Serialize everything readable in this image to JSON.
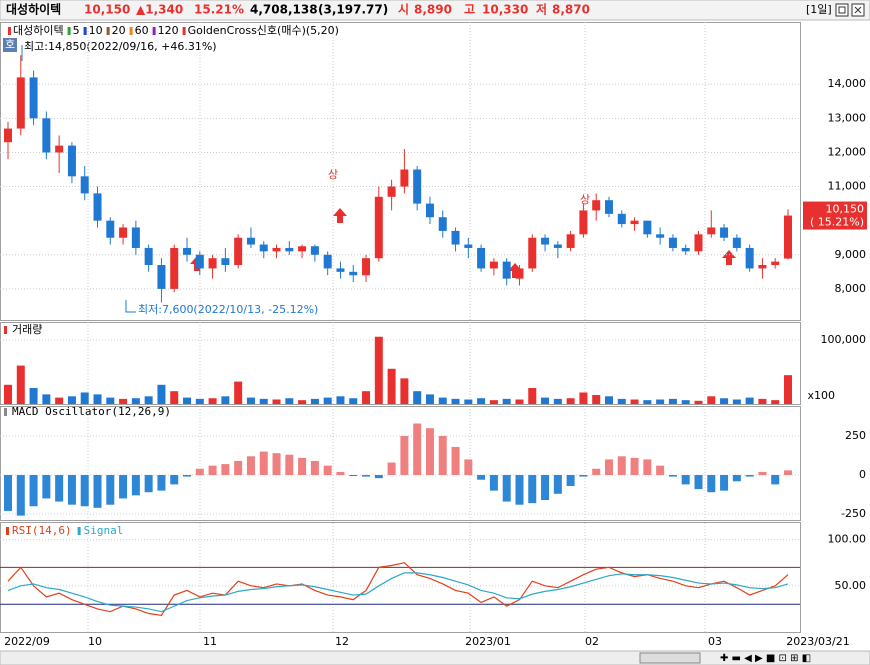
{
  "header": {
    "name": "대성하이텍",
    "price": "10,150",
    "change": "▲1,340",
    "change_pct": "15.21%",
    "volume": "4,708,138",
    "amount": "(3,197.77)",
    "open_label": "시",
    "open": "8,890",
    "high_label": "고",
    "high": "10,330",
    "low_label": "저",
    "low": "8,870",
    "period": "[1일]"
  },
  "chart_data": [
    {
      "type": "candlestick",
      "legend": [
        {
          "name": "대성하이텍",
          "color": "#e8312e"
        },
        {
          "name": "5",
          "color": "#2fa52f"
        },
        {
          "name": "10",
          "color": "#2040d0"
        },
        {
          "name": "20",
          "color": "#a0522d"
        },
        {
          "name": "60",
          "color": "#f08020"
        },
        {
          "name": "120",
          "color": "#9020c0"
        },
        {
          "name": "GoldenCross신호(매수)(5,20)",
          "color": "#e8312e"
        }
      ],
      "high_annotation": "최고:14,850(2022/09/16, +46.31%)",
      "low_annotation": "최저:7,600(2022/10/13, -25.12%)",
      "limit_mark": "상",
      "up_color": "#e8312e",
      "down_color": "#1f78d1",
      "price_tag": {
        "value": 10150,
        "label": "10,150",
        "change_label": "( 15.21%)"
      },
      "ohlc": [
        [
          12300,
          12900,
          11800,
          12700
        ],
        [
          12700,
          14850,
          12500,
          14200
        ],
        [
          14200,
          14400,
          12800,
          13000
        ],
        [
          13000,
          13200,
          11800,
          12000
        ],
        [
          12000,
          12500,
          11400,
          12200
        ],
        [
          12200,
          12300,
          11100,
          11300
        ],
        [
          11300,
          11600,
          10600,
          10800
        ],
        [
          10800,
          11000,
          9800,
          10000
        ],
        [
          10000,
          10100,
          9300,
          9500
        ],
        [
          9500,
          9900,
          9300,
          9800
        ],
        [
          9800,
          10000,
          9000,
          9200
        ],
        [
          9200,
          9300,
          8500,
          8700
        ],
        [
          8700,
          8900,
          7600,
          8000
        ],
        [
          8000,
          9300,
          7900,
          9200
        ],
        [
          9200,
          9500,
          8800,
          9000
        ],
        [
          9000,
          9100,
          8400,
          8600
        ],
        [
          8600,
          9000,
          8300,
          8900
        ],
        [
          8900,
          9200,
          8500,
          8700
        ],
        [
          8700,
          9600,
          8600,
          9500
        ],
        [
          9500,
          9800,
          9200,
          9300
        ],
        [
          9300,
          9400,
          8900,
          9100
        ],
        [
          9100,
          9300,
          8900,
          9200
        ],
        [
          9200,
          9400,
          9000,
          9100
        ],
        [
          9100,
          9300,
          8900,
          9250
        ],
        [
          9250,
          9300,
          8800,
          9000
        ],
        [
          9000,
          9100,
          8400,
          8600
        ],
        [
          8600,
          8800,
          8300,
          8500
        ],
        [
          8500,
          8700,
          8200,
          8400
        ],
        [
          8400,
          9000,
          8200,
          8900
        ],
        [
          8900,
          11000,
          8800,
          10700
        ],
        [
          10700,
          11200,
          10300,
          11000
        ],
        [
          11000,
          12100,
          10800,
          11500
        ],
        [
          11500,
          11600,
          10300,
          10500
        ],
        [
          10500,
          10700,
          9900,
          10100
        ],
        [
          10100,
          10300,
          9500,
          9700
        ],
        [
          9700,
          9800,
          9100,
          9300
        ],
        [
          9300,
          9500,
          8900,
          9200
        ],
        [
          9200,
          9300,
          8500,
          8600
        ],
        [
          8600,
          8900,
          8400,
          8800
        ],
        [
          8800,
          8900,
          8100,
          8300
        ],
        [
          8300,
          8700,
          8100,
          8600
        ],
        [
          8600,
          9600,
          8500,
          9500
        ],
        [
          9500,
          9600,
          9100,
          9300
        ],
        [
          9300,
          9400,
          8900,
          9200
        ],
        [
          9200,
          9700,
          9100,
          9600
        ],
        [
          9600,
          10500,
          9500,
          10300
        ],
        [
          10300,
          10800,
          10000,
          10600
        ],
        [
          10600,
          10700,
          10100,
          10200
        ],
        [
          10200,
          10300,
          9800,
          9900
        ],
        [
          9900,
          10100,
          9700,
          10000
        ],
        [
          10000,
          10000,
          9500,
          9600
        ],
        [
          9600,
          9800,
          9300,
          9500
        ],
        [
          9500,
          9600,
          9100,
          9200
        ],
        [
          9200,
          9300,
          9000,
          9100
        ],
        [
          9100,
          9700,
          9000,
          9600
        ],
        [
          9600,
          10300,
          9500,
          9800
        ],
        [
          9800,
          9900,
          9400,
          9500
        ],
        [
          9500,
          9600,
          9100,
          9200
        ],
        [
          9200,
          9300,
          8500,
          8600
        ],
        [
          8600,
          8900,
          8300,
          8700
        ],
        [
          8700,
          8900,
          8600,
          8800
        ],
        [
          8890,
          10330,
          8870,
          10150
        ]
      ],
      "ylim": [
        7088,
        15824
      ],
      "yticks": [
        {
          "value": 8000,
          "label": "8,000"
        },
        {
          "value": 9000,
          "label": "9,000"
        },
        {
          "value": 11000,
          "label": "11,000"
        },
        {
          "value": 12000,
          "label": "12,000"
        },
        {
          "value": 13000,
          "label": "13,000"
        },
        {
          "value": 14000,
          "label": "14,000"
        }
      ]
    },
    {
      "type": "bar",
      "title": "거래량",
      "unit_label": "x100",
      "values": [
        30000,
        60000,
        25000,
        15000,
        10000,
        12000,
        18000,
        15000,
        10000,
        8000,
        9000,
        12000,
        30000,
        20000,
        10000,
        8000,
        9000,
        12000,
        35000,
        10000,
        8000,
        7000,
        9000,
        6000,
        8000,
        10000,
        12000,
        9000,
        20000,
        105000,
        55000,
        40000,
        20000,
        15000,
        10000,
        8000,
        7000,
        9000,
        6000,
        8000,
        7000,
        25000,
        10000,
        8000,
        9000,
        18000,
        14000,
        12000,
        8000,
        7000,
        6000,
        7000,
        8000,
        6000,
        5000,
        12000,
        9000,
        7000,
        10000,
        8000,
        6000,
        45000
      ],
      "ylim": [
        0,
        128000
      ],
      "yticks": [
        {
          "value": 100000,
          "label": "100,000"
        }
      ]
    },
    {
      "type": "bar",
      "title": "MACD Oscillator(12,26,9)",
      "pos_color": "#f08080",
      "neg_color": "#2e86d6",
      "values": [
        -230,
        -260,
        -200,
        -150,
        -170,
        -190,
        -200,
        -210,
        -190,
        -150,
        -130,
        -110,
        -100,
        -60,
        -10,
        40,
        60,
        70,
        90,
        120,
        150,
        140,
        130,
        110,
        90,
        60,
        20,
        -5,
        -10,
        -20,
        80,
        250,
        330,
        300,
        250,
        180,
        100,
        -30,
        -100,
        -170,
        -190,
        -180,
        -160,
        -120,
        -70,
        -10,
        40,
        100,
        120,
        110,
        100,
        60,
        -10,
        -60,
        -90,
        -110,
        -100,
        -40,
        -10,
        20,
        -60,
        30
      ],
      "ylim": [
        -288,
        442
      ],
      "yticks": [
        250,
        0,
        -250
      ]
    },
    {
      "type": "line",
      "series": [
        {
          "name": "RSI(14,6)",
          "color": "#e0401a",
          "values": [
            55,
            70,
            50,
            38,
            42,
            35,
            30,
            25,
            22,
            28,
            25,
            20,
            18,
            40,
            45,
            38,
            42,
            40,
            55,
            50,
            48,
            52,
            50,
            52,
            45,
            40,
            38,
            35,
            45,
            70,
            72,
            75,
            62,
            58,
            52,
            45,
            42,
            32,
            38,
            28,
            35,
            55,
            50,
            48,
            55,
            62,
            68,
            70,
            64,
            60,
            62,
            58,
            55,
            50,
            48,
            52,
            55,
            48,
            40,
            45,
            50,
            62
          ]
        },
        {
          "name": "Signal",
          "color": "#2aa9c9",
          "values": [
            45,
            50,
            52,
            48,
            46,
            42,
            38,
            33,
            29,
            28,
            27,
            25,
            22,
            28,
            34,
            37,
            39,
            40,
            44,
            46,
            47,
            49,
            50,
            51,
            49,
            46,
            43,
            40,
            41,
            50,
            58,
            64,
            64,
            62,
            59,
            55,
            51,
            45,
            42,
            37,
            36,
            41,
            44,
            46,
            49,
            53,
            57,
            61,
            63,
            62,
            62,
            61,
            59,
            56,
            53,
            52,
            53,
            51,
            48,
            47,
            48,
            52
          ]
        }
      ],
      "levels": [
        70,
        30
      ],
      "ylim": [
        0,
        118
      ],
      "yticks": [
        {
          "value": 100,
          "label": "100.00"
        },
        {
          "value": 50,
          "label": "50.00"
        }
      ]
    }
  ],
  "x_labels": [
    "2022/09",
    "10",
    "11",
    "12",
    "2023/01",
    "02",
    "03",
    "2023/03/21"
  ]
}
